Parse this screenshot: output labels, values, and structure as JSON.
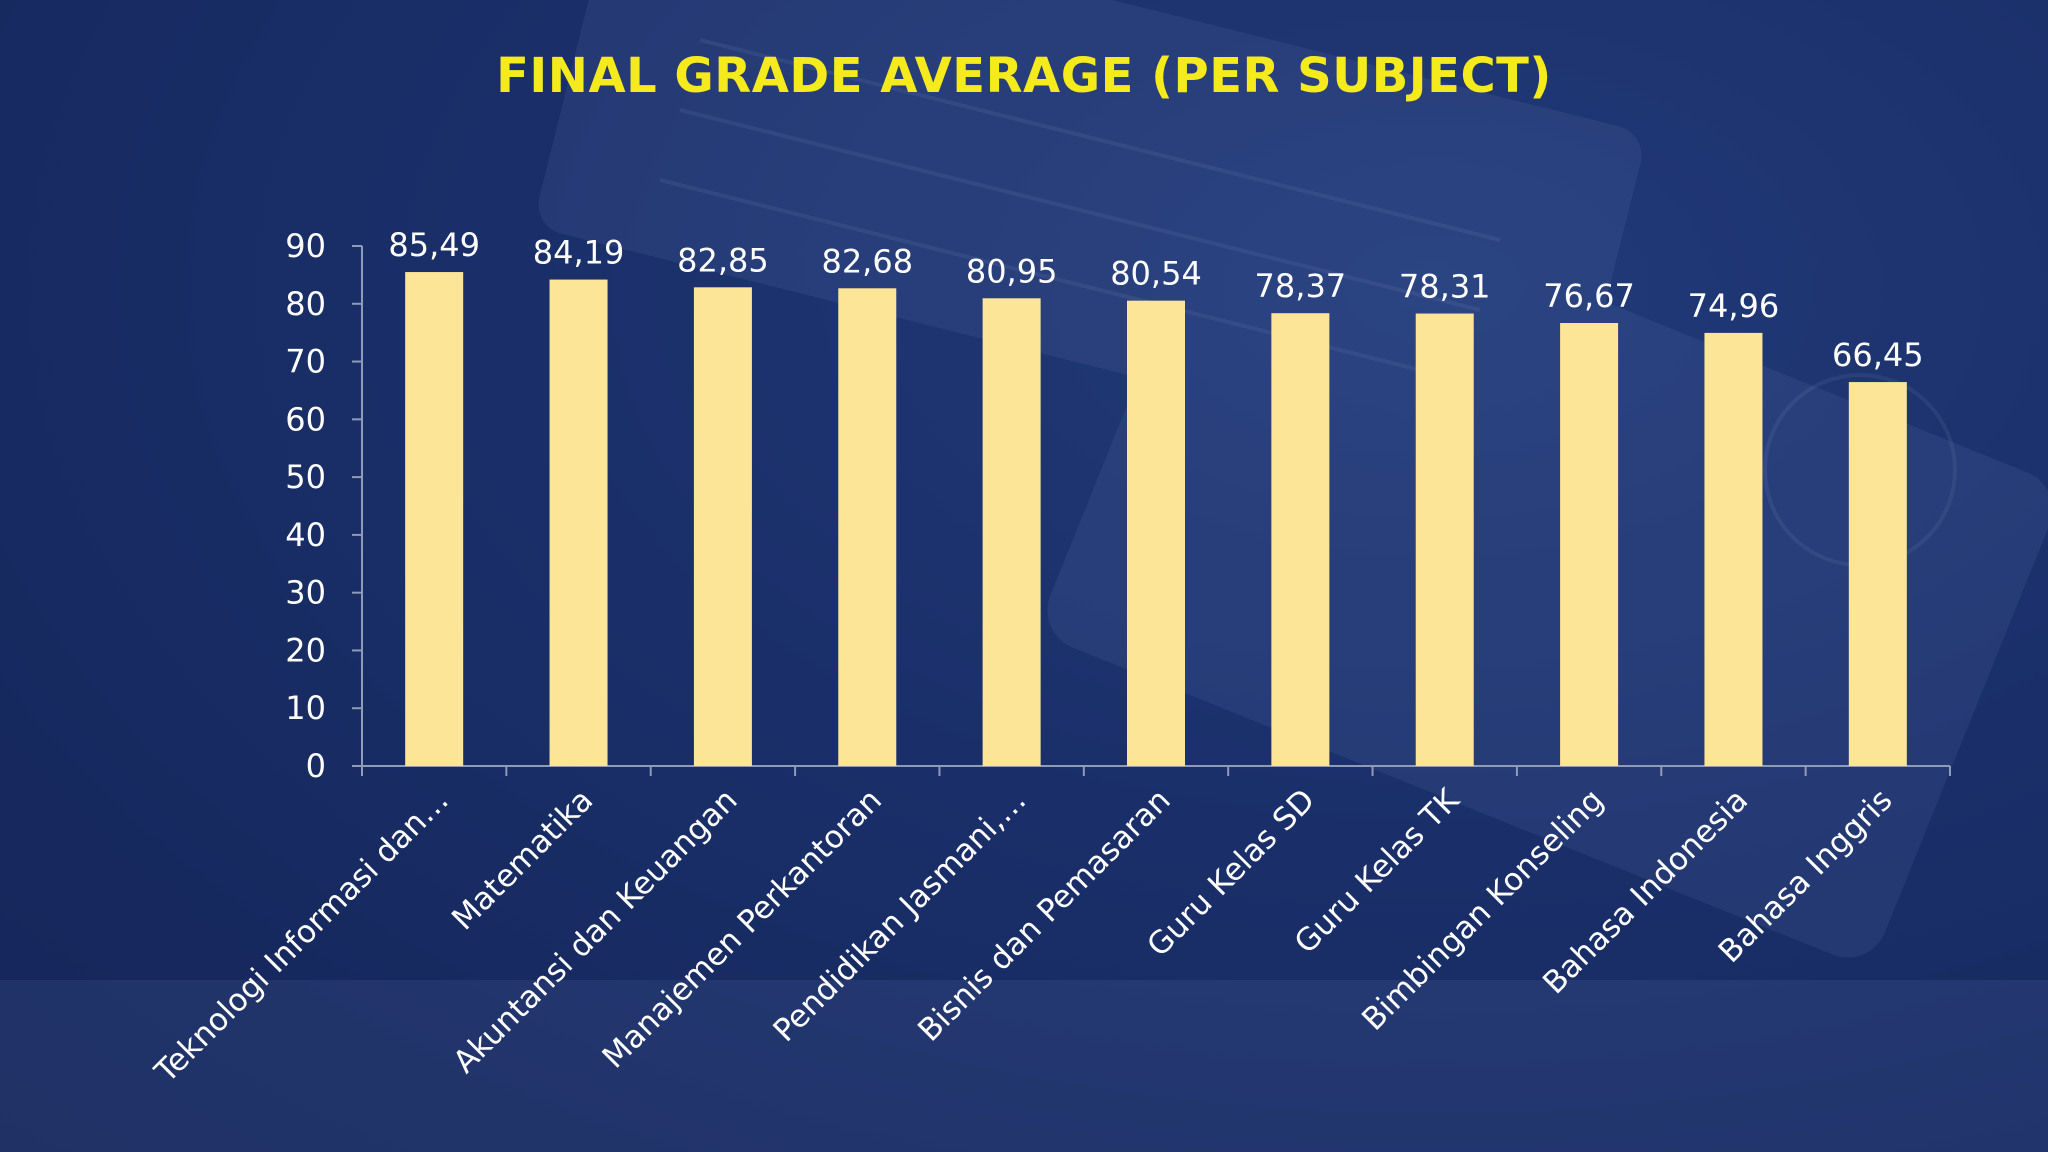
{
  "colors": {
    "background": "#172a63",
    "title": "#f5ea1c",
    "bar": "#fde597",
    "text": "#ffffff",
    "axis": "#8f9bb8"
  },
  "chart_data": {
    "type": "bar",
    "title": "FINAL GRADE AVERAGE (PER SUBJECT)",
    "xlabel": "",
    "ylabel": "",
    "ylim": [
      0,
      90
    ],
    "yticks": [
      0,
      10,
      20,
      30,
      40,
      50,
      60,
      70,
      80,
      90
    ],
    "grid": false,
    "categories": [
      "Teknologi Informasi dan…",
      "Matematika",
      "Akuntansi dan Keuangan",
      "Manajemen Perkantoran",
      "Pendidikan Jasmani,…",
      "Bisnis dan Pemasaran",
      "Guru Kelas SD",
      "Guru Kelas TK",
      "Bimbingan Konseling",
      "Bahasa Indonesia",
      "Bahasa Inggris"
    ],
    "values": [
      85.49,
      84.19,
      82.85,
      82.68,
      80.95,
      80.54,
      78.37,
      78.31,
      76.67,
      74.96,
      66.45
    ],
    "data_labels": [
      "85,49",
      "84,19",
      "82,85",
      "82,68",
      "80,95",
      "80,54",
      "78,37",
      "78,31",
      "76,67",
      "74,96",
      "66,45"
    ]
  }
}
